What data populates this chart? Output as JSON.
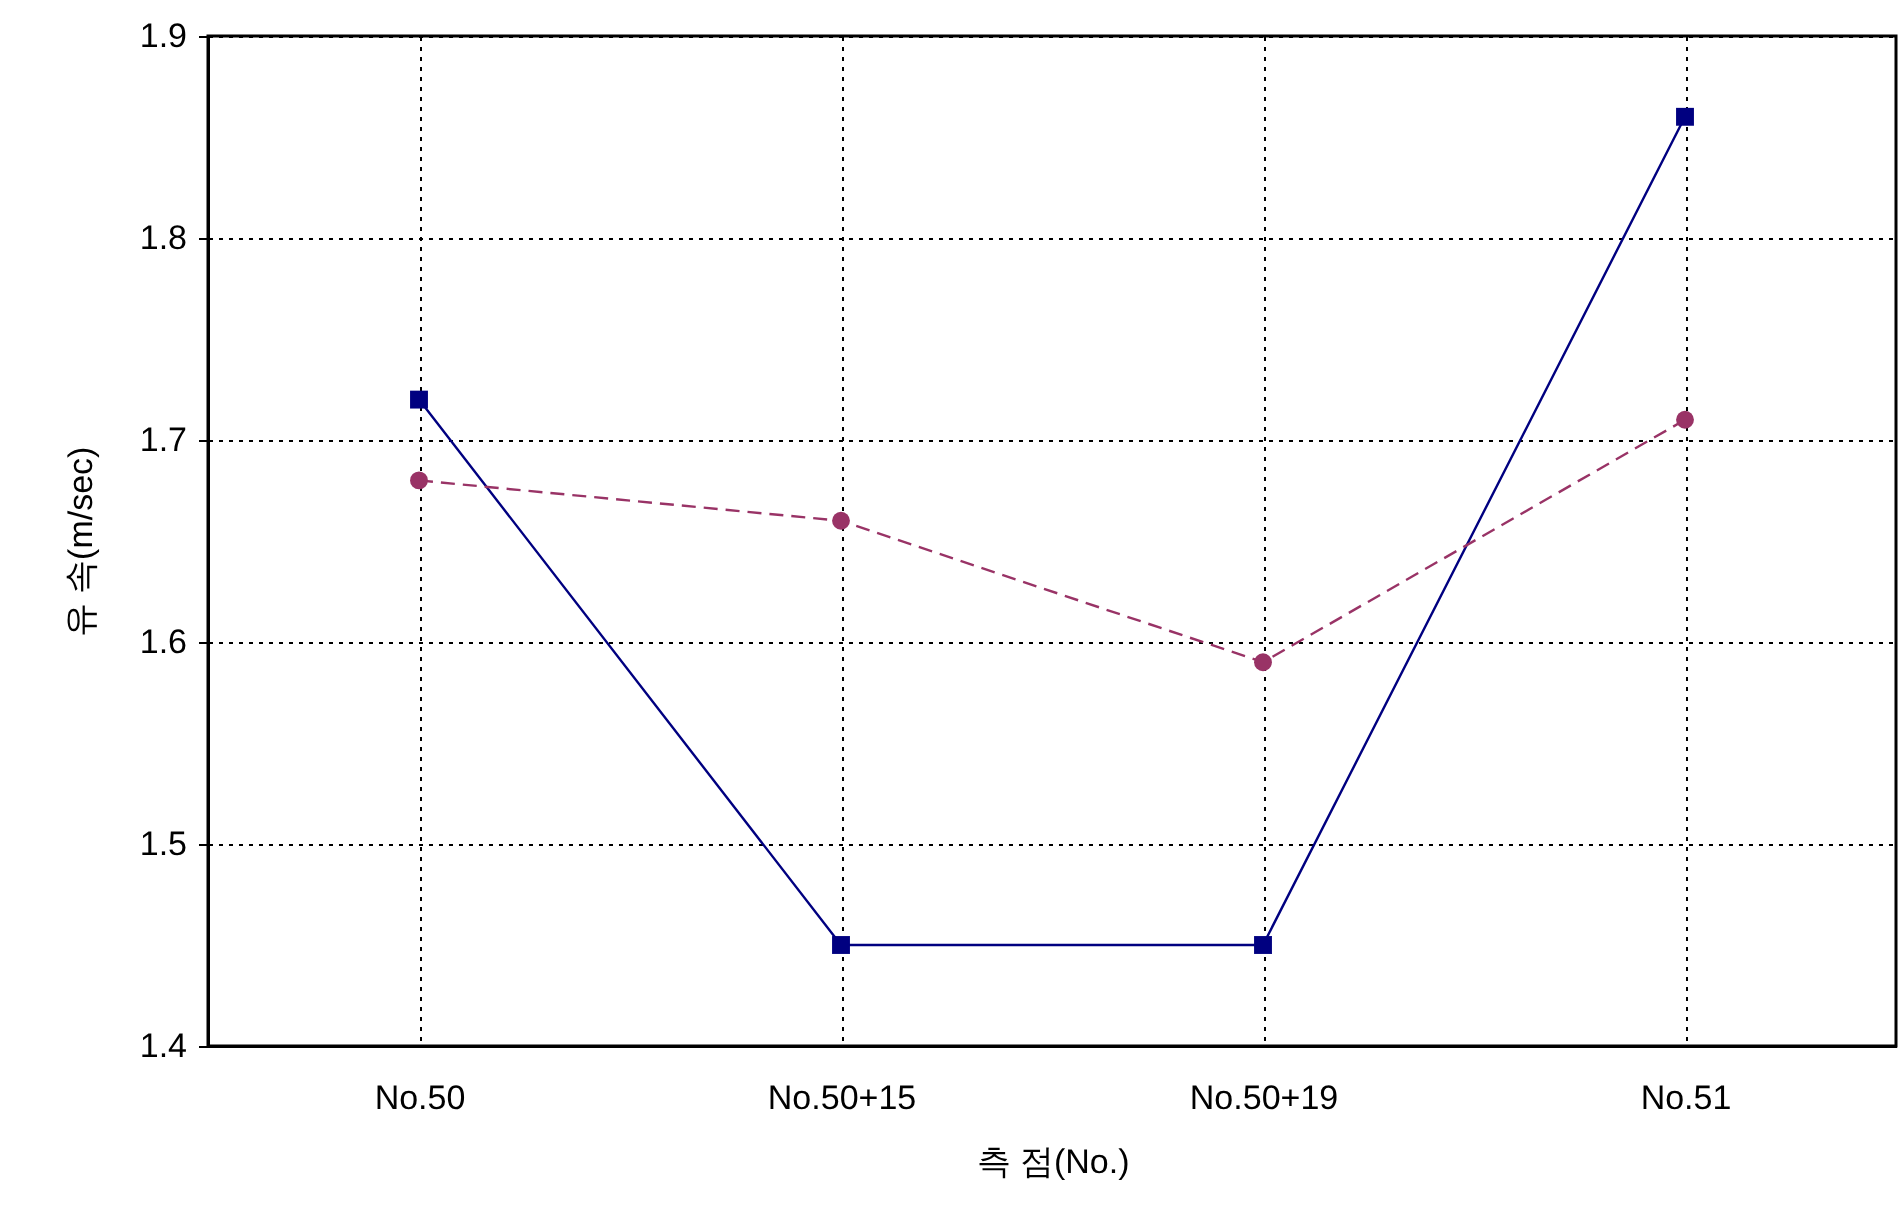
{
  "chart_data": {
    "type": "line",
    "xlabel": "측  점(No.)",
    "ylabel": "유  속(m/sec)",
    "categories": [
      "No.50",
      "No.50+15",
      "No.50+19",
      "No.51"
    ],
    "series": [
      {
        "color": "#000080",
        "marker": "square",
        "line_style": "solid",
        "values": [
          1.72,
          1.45,
          1.45,
          1.86
        ]
      },
      {
        "color": "#993366",
        "marker": "circle",
        "line_style": "dashed",
        "values": [
          1.68,
          1.66,
          1.59,
          1.71
        ]
      }
    ],
    "ylim": [
      1.4,
      1.9
    ],
    "yticks": [
      1.4,
      1.5,
      1.6,
      1.7,
      1.8,
      1.9
    ],
    "grid": true
  }
}
